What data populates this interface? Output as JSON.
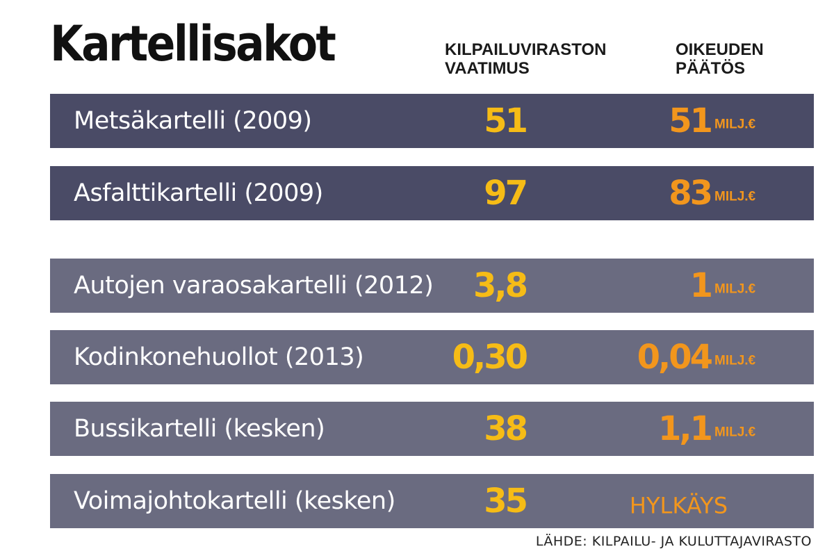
{
  "title": "Kartellisakot",
  "columns": {
    "requested": "KILPAILUVIRASTON\nVAATIMUS",
    "decision": "OIKEUDEN\nPÄÄTÖS"
  },
  "unit": "MILJ.€",
  "source": "LÄHDE: KILPAILU- JA KULUTTAJAVIRASTO",
  "colors": {
    "row_dark": "#4a4b66",
    "row_light": "#6a6b80",
    "requested_value": "#f6bc16",
    "decision_value": "#f2961d"
  },
  "chart_data": {
    "type": "table",
    "title": "Kartellisakot",
    "columns": [
      "KILPAILUVIRASTON VAATIMUS",
      "OIKEUDEN PÄÄTÖS"
    ],
    "unit": "MILJ.€",
    "rows": [
      {
        "label": "Metsäkartelli (2009)",
        "requested": "51",
        "decision": "51",
        "unit": "MILJ.€"
      },
      {
        "label": "Asfalttikartelli (2009)",
        "requested": "97",
        "decision": "83",
        "unit": "MILJ.€"
      },
      {
        "label": "Autojen varaosakartelli (2012)",
        "requested": "3,8",
        "decision": "1",
        "unit": "MILJ.€"
      },
      {
        "label": "Kodinkonehuollot (2013)",
        "requested": "0,30",
        "decision": "0,04",
        "unit": "MILJ.€"
      },
      {
        "label": "Bussikartelli (kesken)",
        "requested": "38",
        "decision": "1,1",
        "unit": "MILJ.€"
      },
      {
        "label": "Voimajohtokartelli (kesken)",
        "requested": "35",
        "decision": "HYLKÄYS",
        "unit": ""
      }
    ]
  }
}
